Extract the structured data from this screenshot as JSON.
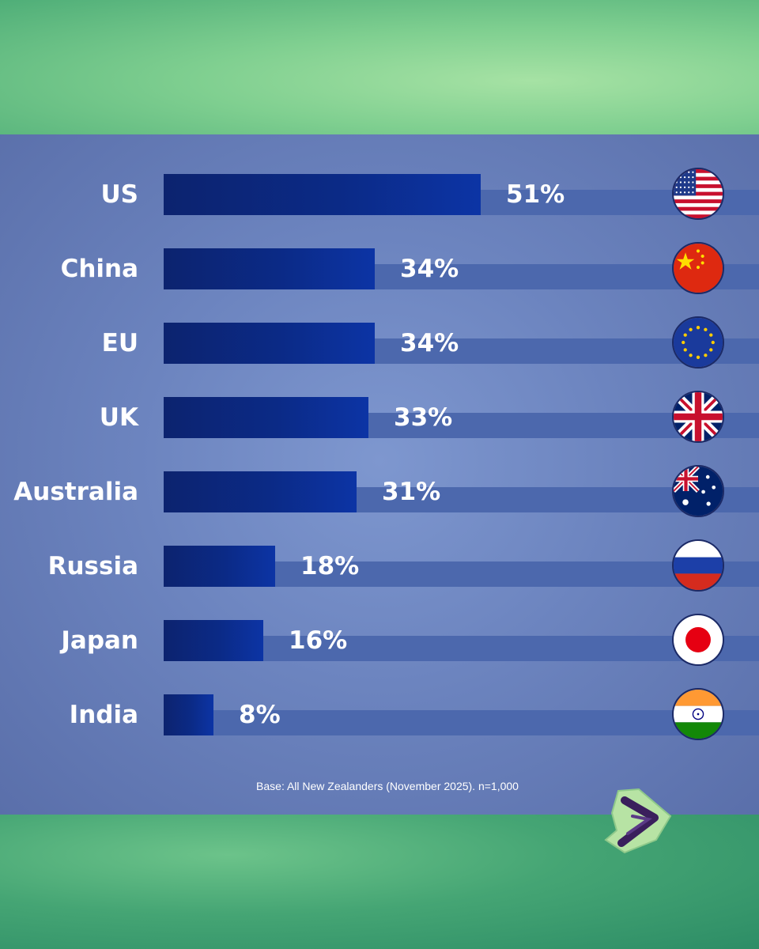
{
  "chart_data": {
    "type": "bar",
    "orientation": "horizontal",
    "categories": [
      "US",
      "China",
      "EU",
      "UK",
      "Australia",
      "Russia",
      "Japan",
      "India"
    ],
    "values": [
      51,
      34,
      34,
      33,
      31,
      18,
      16,
      8
    ],
    "value_labels": [
      "51%",
      "34%",
      "34%",
      "33%",
      "31%",
      "18%",
      "16%",
      "8%"
    ],
    "flag_icons": [
      "us-flag-icon",
      "china-flag-icon",
      "eu-flag-icon",
      "uk-flag-icon",
      "australia-flag-icon",
      "russia-flag-icon",
      "japan-flag-icon",
      "india-flag-icon"
    ],
    "xlim": [
      0,
      100
    ],
    "unit": "%",
    "title": "",
    "xlabel": "",
    "ylabel": "",
    "grid": false,
    "legend": "none"
  },
  "footnote": "Base: All New Zealanders (November 2025). n=1,000",
  "next_button": {
    "icon": "chevron-right-icon"
  },
  "colors": {
    "bar": "#0b2a86",
    "track": "#4c68ad",
    "panel": "#6c84bf",
    "background": "#4fae78"
  }
}
